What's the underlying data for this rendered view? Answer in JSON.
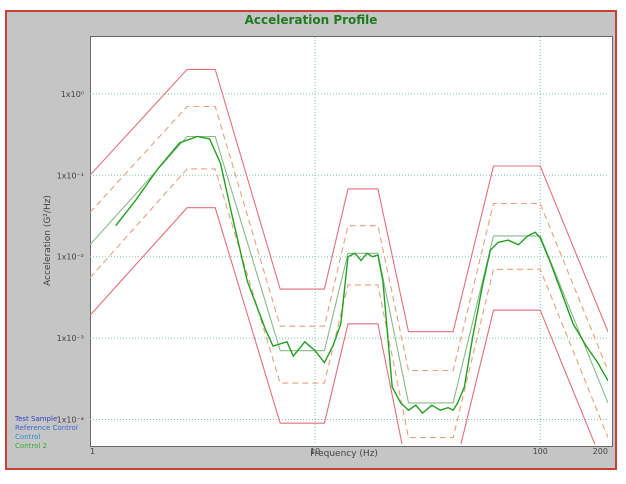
{
  "chart_data": {
    "type": "line",
    "title": "Acceleration Profile",
    "xlabel": "Frequency (Hz)",
    "ylabel": "Acceleration (G²/Hz)",
    "x_scale": "log",
    "y_scale": "log",
    "xlim": [
      1,
      200
    ],
    "ylim": [
      5e-05,
      5
    ],
    "grid": true,
    "x_ticks": [
      {
        "value": 1,
        "label": "1"
      },
      {
        "value": 10,
        "label": "10"
      },
      {
        "value": 100,
        "label": "100"
      },
      {
        "value": 200,
        "label": "200"
      }
    ],
    "y_ticks": [
      {
        "value": 0.0001,
        "label": "1x10⁻⁴"
      },
      {
        "value": 0.001,
        "label": "1x10⁻³"
      },
      {
        "value": 0.01,
        "label": "1x10⁻²"
      },
      {
        "value": 0.1,
        "label": "1x10⁻¹"
      },
      {
        "value": 1,
        "label": "1x10⁰"
      }
    ],
    "legend_position": "bottom-left",
    "legend": [
      {
        "label": "Test Sample",
        "color": "#2f3fbf"
      },
      {
        "label": "Reference Control",
        "color": "#3a6ad0"
      },
      {
        "label": "Control",
        "color": "#2f8fd0"
      },
      {
        "label": "Control 2",
        "color": "#2fb02f"
      }
    ],
    "series": [
      {
        "style": "upper-abort",
        "color": "#e0707a",
        "dash": "solid",
        "points": [
          [
            1,
            0.1
          ],
          [
            2.7,
            2.0
          ],
          [
            3.6,
            2.0
          ],
          [
            7,
            0.004
          ],
          [
            11,
            0.004
          ],
          [
            14,
            0.068
          ],
          [
            19,
            0.068
          ],
          [
            26,
            0.0012
          ],
          [
            41,
            0.0012
          ],
          [
            62,
            0.13
          ],
          [
            100,
            0.13
          ],
          [
            200,
            0.0012
          ]
        ]
      },
      {
        "style": "upper-alarm",
        "color": "#e8a07a",
        "dash": "dashed",
        "points": [
          [
            1,
            0.035
          ],
          [
            2.7,
            0.7
          ],
          [
            3.6,
            0.7
          ],
          [
            7,
            0.0014
          ],
          [
            11,
            0.0014
          ],
          [
            14,
            0.024
          ],
          [
            19,
            0.024
          ],
          [
            26,
            0.0004
          ],
          [
            41,
            0.0004
          ],
          [
            62,
            0.045
          ],
          [
            100,
            0.045
          ],
          [
            200,
            0.0004
          ]
        ]
      },
      {
        "style": "reference",
        "color": "#8ab888",
        "dash": "solid",
        "points": [
          [
            1,
            0.014
          ],
          [
            2.7,
            0.3
          ],
          [
            3.6,
            0.3
          ],
          [
            7,
            0.0007
          ],
          [
            11,
            0.0007
          ],
          [
            14,
            0.011
          ],
          [
            19,
            0.011
          ],
          [
            26,
            0.00016
          ],
          [
            41,
            0.00016
          ],
          [
            62,
            0.018
          ],
          [
            100,
            0.018
          ],
          [
            200,
            0.00016
          ]
        ]
      },
      {
        "style": "lower-alarm",
        "color": "#e8a07a",
        "dash": "dashed",
        "points": [
          [
            1,
            0.0055
          ],
          [
            2.7,
            0.12
          ],
          [
            3.6,
            0.12
          ],
          [
            7,
            0.00028
          ],
          [
            11,
            0.00028
          ],
          [
            14,
            0.0045
          ],
          [
            19,
            0.0045
          ],
          [
            26,
            6e-05
          ],
          [
            41,
            6e-05
          ],
          [
            62,
            0.007
          ],
          [
            100,
            0.007
          ],
          [
            200,
            6e-05
          ]
        ]
      },
      {
        "style": "lower-abort",
        "color": "#e0707a",
        "dash": "solid",
        "points": [
          [
            1,
            0.0019
          ],
          [
            2.7,
            0.04
          ],
          [
            3.6,
            0.04
          ],
          [
            7,
            9e-05
          ],
          [
            11,
            9e-05
          ],
          [
            14,
            0.0015
          ],
          [
            19,
            0.0015
          ],
          [
            26,
            2e-05
          ],
          [
            41,
            2e-05
          ],
          [
            62,
            0.0022
          ],
          [
            100,
            0.0022
          ],
          [
            200,
            2e-05
          ]
        ]
      },
      {
        "style": "control",
        "color": "#22a022",
        "dash": "solid",
        "points": [
          [
            1.3,
            0.024
          ],
          [
            1.6,
            0.05
          ],
          [
            2,
            0.12
          ],
          [
            2.5,
            0.25
          ],
          [
            3,
            0.3
          ],
          [
            3.4,
            0.28
          ],
          [
            3.8,
            0.14
          ],
          [
            4.3,
            0.03
          ],
          [
            5,
            0.005
          ],
          [
            6,
            0.0013
          ],
          [
            6.5,
            0.0008
          ],
          [
            7.5,
            0.0009
          ],
          [
            8,
            0.0006
          ],
          [
            9,
            0.0009
          ],
          [
            10,
            0.0007
          ],
          [
            11,
            0.0005
          ],
          [
            12,
            0.0008
          ],
          [
            13,
            0.0015
          ],
          [
            14,
            0.01
          ],
          [
            15,
            0.011
          ],
          [
            16,
            0.009
          ],
          [
            17,
            0.011
          ],
          [
            18,
            0.01
          ],
          [
            19,
            0.0105
          ],
          [
            20,
            0.005
          ],
          [
            22,
            0.00025
          ],
          [
            24,
            0.00016
          ],
          [
            26,
            0.00013
          ],
          [
            28,
            0.00015
          ],
          [
            30,
            0.00012
          ],
          [
            33,
            0.00015
          ],
          [
            36,
            0.00013
          ],
          [
            39,
            0.00014
          ],
          [
            41,
            0.00013
          ],
          [
            43,
            0.00016
          ],
          [
            46,
            0.00025
          ],
          [
            50,
            0.001
          ],
          [
            55,
            0.004
          ],
          [
            60,
            0.012
          ],
          [
            65,
            0.015
          ],
          [
            72,
            0.016
          ],
          [
            80,
            0.014
          ],
          [
            88,
            0.018
          ],
          [
            95,
            0.02
          ],
          [
            100,
            0.017
          ],
          [
            110,
            0.009
          ],
          [
            125,
            0.0035
          ],
          [
            140,
            0.0015
          ],
          [
            160,
            0.0008
          ],
          [
            180,
            0.0005
          ],
          [
            200,
            0.0003
          ]
        ]
      }
    ]
  }
}
